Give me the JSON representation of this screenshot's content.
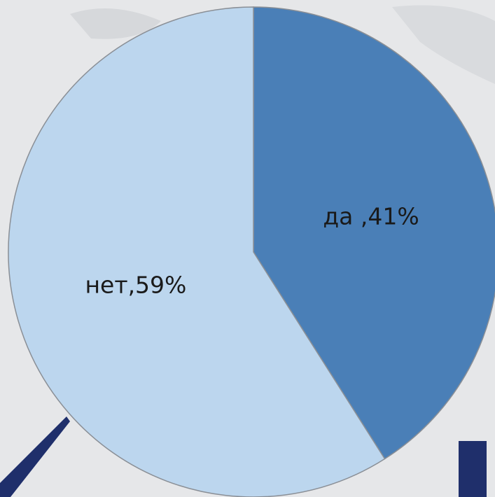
{
  "chart_data": {
    "type": "pie",
    "values": [
      41,
      59
    ],
    "value_labels": [
      "да ,41%",
      "нет,59%"
    ],
    "colors": [
      "#4a7fb7",
      "#bcd6ee"
    ]
  }
}
